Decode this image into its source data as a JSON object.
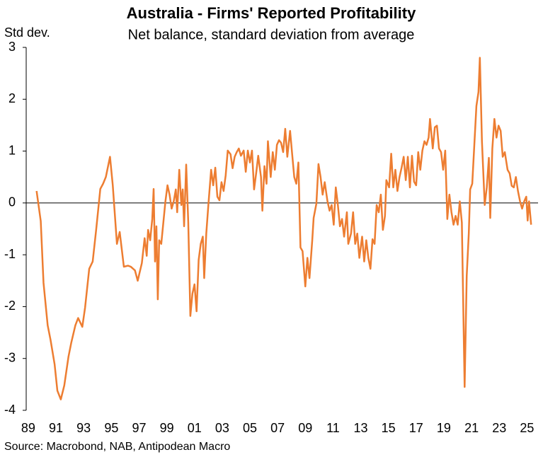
{
  "chart_data": {
    "type": "line",
    "title": "Australia - Firms' Reported Profitability",
    "subtitle": "Net balance, standard deviation from average",
    "y_label": "Std dev.",
    "source": "Source: Macrobond, NAB, Antipodean Macro",
    "color": "#ED7D31",
    "grid": false,
    "xlim": [
      1988.85,
      2025.8
    ],
    "xticks": [
      {
        "value": 1989,
        "label": "89"
      },
      {
        "value": 1991,
        "label": "91"
      },
      {
        "value": 1993,
        "label": "93"
      },
      {
        "value": 1995,
        "label": "95"
      },
      {
        "value": 1997,
        "label": "97"
      },
      {
        "value": 1999,
        "label": "99"
      },
      {
        "value": 2001,
        "label": "01"
      },
      {
        "value": 2003,
        "label": "03"
      },
      {
        "value": 2005,
        "label": "05"
      },
      {
        "value": 2007,
        "label": "07"
      },
      {
        "value": 2009,
        "label": "09"
      },
      {
        "value": 2011,
        "label": "11"
      },
      {
        "value": 2013,
        "label": "13"
      },
      {
        "value": 2015,
        "label": "15"
      },
      {
        "value": 2017,
        "label": "17"
      },
      {
        "value": 2019,
        "label": "19"
      },
      {
        "value": 2021,
        "label": "21"
      },
      {
        "value": 2023,
        "label": "23"
      },
      {
        "value": 2025,
        "label": "25"
      }
    ],
    "ylim": [
      -4,
      3
    ],
    "yticks": [
      -4,
      -3,
      -2,
      -1,
      0,
      1,
      2,
      3
    ],
    "x": [
      1989.6,
      1989.9,
      1990.1,
      1990.4,
      1990.6,
      1990.9,
      1991.1,
      1991.35,
      1991.6,
      1991.9,
      1992.1,
      1992.4,
      1992.6,
      1992.9,
      1993.1,
      1993.4,
      1993.65,
      1993.9,
      1994.2,
      1994.4,
      1994.6,
      1994.9,
      1995.1,
      1995.4,
      1995.6,
      1995.9,
      1996.2,
      1996.4,
      1996.7,
      1996.9,
      1997.2,
      1997.4,
      1997.55,
      1997.65,
      1997.8,
      1997.95,
      1998.05,
      1998.15,
      1998.25,
      1998.35,
      1998.45,
      1998.6,
      1998.75,
      1998.9,
      1999.05,
      1999.2,
      1999.35,
      1999.5,
      1999.65,
      1999.75,
      1999.9,
      2000.05,
      2000.15,
      2000.25,
      2000.4,
      2000.55,
      2000.7,
      2000.85,
      2001.0,
      2001.15,
      2001.3,
      2001.45,
      2001.6,
      2001.7,
      2001.85,
      2002.0,
      2002.2,
      2002.35,
      2002.5,
      2002.65,
      2002.8,
      2002.95,
      2003.1,
      2003.25,
      2003.4,
      2003.6,
      2003.75,
      2003.9,
      2004.05,
      2004.2,
      2004.35,
      2004.55,
      2004.7,
      2004.85,
      2005.0,
      2005.15,
      2005.3,
      2005.45,
      2005.6,
      2005.8,
      2005.9,
      2006.05,
      2006.2,
      2006.3,
      2006.5,
      2006.65,
      2006.8,
      2006.95,
      2007.1,
      2007.25,
      2007.4,
      2007.55,
      2007.7,
      2007.9,
      2008.05,
      2008.2,
      2008.35,
      2008.5,
      2008.65,
      2008.8,
      2009.0,
      2009.15,
      2009.3,
      2009.5,
      2009.6,
      2009.8,
      2009.95,
      2010.1,
      2010.25,
      2010.4,
      2010.6,
      2010.75,
      2010.9,
      2011.05,
      2011.2,
      2011.35,
      2011.5,
      2011.65,
      2011.8,
      2012.0,
      2012.1,
      2012.3,
      2012.45,
      2012.6,
      2012.75,
      2012.9,
      2013.1,
      2013.25,
      2013.4,
      2013.55,
      2013.7,
      2013.85,
      2014.0,
      2014.15,
      2014.3,
      2014.45,
      2014.6,
      2014.75,
      2014.85,
      2015.05,
      2015.2,
      2015.35,
      2015.5,
      2015.65,
      2015.8,
      2015.95,
      2016.1,
      2016.25,
      2016.4,
      2016.55,
      2016.7,
      2016.85,
      2017.0,
      2017.15,
      2017.3,
      2017.45,
      2017.6,
      2017.75,
      2017.9,
      2018.0,
      2018.2,
      2018.35,
      2018.5,
      2018.65,
      2018.8,
      2018.95,
      2019.1,
      2019.25,
      2019.4,
      2019.55,
      2019.7,
      2019.85,
      2020.0,
      2020.15,
      2020.3,
      2020.5,
      2020.65,
      2020.8,
      2020.9,
      2021.05,
      2021.2,
      2021.35,
      2021.5,
      2021.6,
      2021.75,
      2021.95,
      2022.1,
      2022.25,
      2022.35,
      2022.5,
      2022.65,
      2022.8,
      2022.95,
      2023.1,
      2023.25,
      2023.4,
      2023.6,
      2023.75,
      2023.9,
      2024.05,
      2024.2,
      2024.35,
      2024.5,
      2024.65,
      2024.8,
      2024.95,
      2025.05,
      2025.15,
      2025.3
    ],
    "values": [
      0.23,
      -0.35,
      -1.54,
      -2.36,
      -2.63,
      -3.11,
      -3.62,
      -3.79,
      -3.52,
      -2.97,
      -2.7,
      -2.36,
      -2.22,
      -2.39,
      -2.02,
      -1.27,
      -1.13,
      -0.52,
      0.27,
      0.37,
      0.5,
      0.89,
      0.34,
      -0.79,
      -0.56,
      -1.23,
      -1.21,
      -1.23,
      -1.3,
      -1.5,
      -1.16,
      -0.68,
      -1.02,
      -0.52,
      -0.72,
      -0.31,
      0.27,
      -1.13,
      -0.45,
      -1.86,
      -0.72,
      -0.79,
      -0.38,
      0.03,
      0.34,
      0.16,
      -0.11,
      0.03,
      0.26,
      -0.18,
      0.64,
      -0.04,
      0.26,
      -0.45,
      0.74,
      -0.38,
      -2.18,
      -1.75,
      -1.57,
      -2.09,
      -1.1,
      -0.79,
      -0.65,
      -1.45,
      -0.59,
      -0.04,
      0.64,
      0.34,
      0.68,
      0.12,
      0.05,
      0.4,
      0.23,
      0.53,
      1.01,
      0.94,
      0.67,
      0.89,
      0.98,
      1.05,
      0.91,
      1.01,
      0.6,
      1.01,
      0.78,
      1.01,
      0.26,
      0.57,
      0.91,
      0.5,
      -0.15,
      0.71,
      0.37,
      1.19,
      0.5,
      0.98,
      0.64,
      1.12,
      1.21,
      1.16,
      0.98,
      1.43,
      0.89,
      1.39,
      0.94,
      0.5,
      0.37,
      0.78,
      -0.86,
      -0.93,
      -1.61,
      -1.06,
      -1.45,
      -0.72,
      -0.29,
      -0.01,
      0.75,
      0.5,
      0.16,
      0.4,
      0.03,
      -0.15,
      -0.04,
      -0.42,
      0.3,
      -0.04,
      -0.45,
      -0.31,
      -0.65,
      -0.18,
      -0.79,
      -0.59,
      -0.18,
      -0.79,
      -0.59,
      -1.06,
      -0.65,
      -1.13,
      -0.72,
      -1.06,
      -1.27,
      -0.7,
      -0.79,
      -0.04,
      -0.18,
      0.16,
      -0.52,
      -0.25,
      0.44,
      0.3,
      0.95,
      0.3,
      0.64,
      0.23,
      0.5,
      0.68,
      0.89,
      0.44,
      0.89,
      0.3,
      0.91,
      0.41,
      0.34,
      0.98,
      0.64,
      1.01,
      1.19,
      1.12,
      1.26,
      1.62,
      1.05,
      1.46,
      1.49,
      1.05,
      0.98,
      0.64,
      1.01,
      -0.31,
      0.16,
      -0.18,
      -0.42,
      -0.25,
      -0.42,
      0.03,
      -0.38,
      -3.55,
      -1.41,
      -0.59,
      0.26,
      0.37,
      1.12,
      1.87,
      2.14,
      2.8,
      1.19,
      -0.04,
      0.3,
      0.87,
      -0.29,
      1.05,
      1.62,
      1.26,
      1.49,
      1.39,
      0.89,
      0.98,
      0.64,
      0.57,
      0.33,
      0.3,
      0.5,
      0.23,
      0.03,
      -0.11,
      0.03,
      0.12,
      -0.34,
      0.03,
      -0.42
    ]
  }
}
